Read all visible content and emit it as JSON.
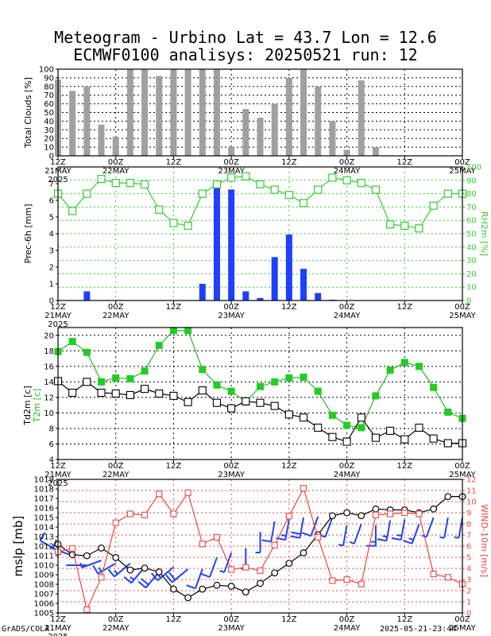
{
  "title_line1": "Meteogram - Urbino Lat = 43.7 Lon = 12.6",
  "title_line2": "ECMWF0100 analisys: 20250521 run: 12",
  "credit_left": "GrADS/COLA",
  "credit_right": "2025-05-21-23:44",
  "time_axis": {
    "ticks": [
      {
        "label": "12Z",
        "sublabel": "21MAY",
        "year": "2025"
      },
      {
        "label": "00Z",
        "sublabel": "22MAY",
        "year": ""
      },
      {
        "label": "12Z",
        "sublabel": "",
        "year": ""
      },
      {
        "label": "00Z",
        "sublabel": "23MAY",
        "year": ""
      },
      {
        "label": "12Z",
        "sublabel": "",
        "year": ""
      },
      {
        "label": "00Z",
        "sublabel": "24MAY",
        "year": ""
      },
      {
        "label": "12Z",
        "sublabel": "",
        "year": ""
      },
      {
        "label": "00Z",
        "sublabel": "25MAY",
        "year": ""
      }
    ]
  },
  "colors": {
    "cloud_bar": "#a0a0a0",
    "precip_bar": "#1f3fff",
    "rh_line": "#33cc33",
    "t2m_line": "#22bb22",
    "t2m_marker": "#22cc22",
    "td2m_line": "#000000",
    "mslp_line": "#000000",
    "wind_line": "#ee4444",
    "barb": "#2244ee"
  },
  "chart_data": [
    {
      "type": "bar",
      "ylabel": "Total Clouds [%]",
      "ylim": [
        0,
        100
      ],
      "yticks": [
        0,
        10,
        20,
        30,
        40,
        50,
        60,
        70,
        80,
        90,
        100
      ],
      "x": [
        0,
        3,
        6,
        9,
        12,
        15,
        18,
        21,
        24,
        27,
        30,
        33,
        36,
        39,
        42,
        45,
        48,
        51,
        54,
        57,
        60,
        63,
        66,
        69,
        72,
        75,
        78,
        81,
        84
      ],
      "values": [
        88,
        75,
        80,
        36,
        22,
        100,
        100,
        92,
        100,
        100,
        100,
        100,
        10,
        54,
        44,
        60,
        90,
        100,
        80,
        40,
        7,
        87,
        10,
        0,
        0,
        0,
        0,
        0,
        0
      ]
    },
    {
      "type": "bar+line",
      "ylabel": "Prec-6h [mm]",
      "ylabel_right": "RH2m [%]",
      "ylim": [
        0,
        8
      ],
      "ylim_right": [
        0,
        100
      ],
      "yticks": [
        0,
        1,
        2,
        3,
        4,
        5,
        6,
        7
      ],
      "yticks_right": [
        0,
        10,
        20,
        30,
        40,
        50,
        60,
        70,
        80,
        90,
        100
      ],
      "precip_x": [
        6,
        30,
        33,
        36,
        39,
        42,
        45,
        48,
        51,
        54,
        57,
        60
      ],
      "precip_values": [
        0.55,
        1.0,
        6.95,
        6.65,
        0.55,
        0.15,
        2.6,
        3.95,
        1.9,
        0.45,
        0.05,
        0.0
      ],
      "rh_x": [
        0,
        3,
        6,
        9,
        12,
        15,
        18,
        21,
        24,
        27,
        30,
        33,
        36,
        39,
        42,
        45,
        48,
        51,
        54,
        57,
        60,
        63,
        66,
        69,
        72,
        75,
        78,
        81,
        84
      ],
      "rh_values": [
        80,
        67,
        80,
        91,
        88,
        88,
        87,
        68,
        58,
        56,
        80,
        87,
        92,
        93,
        87,
        83,
        79,
        73,
        83,
        92,
        90,
        88,
        83,
        57,
        56,
        54,
        71,
        80,
        80
      ]
    },
    {
      "type": "line",
      "ylabel": "Td2m [c]",
      "ylabel2": "T2m [c]",
      "ylim": [
        4,
        21
      ],
      "yticks": [
        4,
        6,
        8,
        10,
        12,
        14,
        16,
        18,
        20
      ],
      "series": [
        {
          "name": "T2m [c]",
          "x": [
            0,
            3,
            6,
            9,
            12,
            15,
            18,
            21,
            24,
            27,
            30,
            33,
            36,
            39,
            42,
            45,
            48,
            51,
            54,
            57,
            60,
            63,
            66,
            69,
            72,
            75,
            78,
            81,
            84
          ],
          "values": [
            17.9,
            19.2,
            17.8,
            14.0,
            14.5,
            14.4,
            15.4,
            18.7,
            20.6,
            20.6,
            15.6,
            13.6,
            12.8,
            11.4,
            13.4,
            14.0,
            14.5,
            14.6,
            12.8,
            9.7,
            8.4,
            8.1,
            12.2,
            15.5,
            16.5,
            16.0,
            13.3,
            10.1,
            9.3
          ]
        },
        {
          "name": "Td2m [c]",
          "x": [
            0,
            3,
            6,
            9,
            12,
            15,
            18,
            21,
            24,
            27,
            30,
            33,
            36,
            39,
            42,
            45,
            48,
            51,
            54,
            57,
            60,
            63,
            66,
            69,
            72,
            75,
            78,
            81,
            84
          ],
          "values": [
            14.1,
            12.6,
            14.0,
            12.6,
            12.5,
            12.3,
            13.1,
            12.5,
            12.2,
            11.4,
            12.9,
            11.3,
            10.6,
            11.5,
            11.3,
            10.9,
            9.8,
            9.4,
            8.1,
            6.9,
            6.3,
            9.4,
            6.8,
            7.7,
            6.6,
            8.1,
            6.7,
            6.1,
            6.1
          ]
        }
      ]
    },
    {
      "type": "line",
      "ylabel": "mslp [mb]",
      "ylabel_right": "WIND-10m [m/s]",
      "ylim": [
        1005,
        1019
      ],
      "ylim_right": [
        0,
        12
      ],
      "yticks": [
        1005,
        1006,
        1007,
        1008,
        1009,
        1010,
        1011,
        1012,
        1013,
        1014,
        1015,
        1016,
        1017,
        1018,
        1019
      ],
      "yticks_right": [
        0,
        1,
        2,
        3,
        4,
        5,
        6,
        7,
        8,
        9,
        10,
        11,
        12
      ],
      "series": [
        {
          "name": "mslp [mb]",
          "x": [
            0,
            3,
            6,
            9,
            12,
            15,
            18,
            21,
            24,
            27,
            30,
            33,
            36,
            39,
            42,
            45,
            48,
            51,
            54,
            57,
            60,
            63,
            66,
            69,
            72,
            75,
            78,
            81,
            84
          ],
          "values": [
            1012.2,
            1011.1,
            1011.0,
            1011.8,
            1010.8,
            1009.5,
            1009.7,
            1009.3,
            1007.5,
            1006.6,
            1007.5,
            1007.9,
            1007.8,
            1007.2,
            1008.1,
            1009.2,
            1010.2,
            1011.3,
            1013.2,
            1015.2,
            1015.5,
            1015.2,
            1015.9,
            1015.8,
            1015.8,
            1015.5,
            1015.9,
            1017.2,
            1017.2
          ]
        },
        {
          "name": "WIND-10m [m/s]",
          "x": [
            0,
            3,
            6,
            9,
            12,
            15,
            18,
            21,
            24,
            27,
            30,
            33,
            36,
            39,
            42,
            45,
            48,
            51,
            54,
            57,
            60,
            63,
            66,
            69,
            72,
            75,
            78,
            81,
            84
          ],
          "values": [
            5.5,
            5.8,
            0.3,
            3.2,
            8.1,
            8.9,
            8.8,
            10.7,
            8.9,
            10.8,
            6.2,
            6.8,
            3.9,
            4.1,
            3.8,
            6.1,
            8.7,
            11.2,
            6.8,
            2.9,
            3.0,
            2.6,
            8.8,
            8.9,
            9.0,
            8.9,
            3.5,
            3.2,
            2.6
          ]
        }
      ],
      "wind_barbs": {
        "x": [
          0,
          3,
          6,
          9,
          12,
          15,
          18,
          21,
          24,
          27,
          30,
          33,
          36,
          39,
          42,
          45,
          48,
          51,
          54,
          57,
          60,
          63,
          66,
          69,
          72,
          75,
          78,
          81,
          84
        ],
        "level_mb": [
          1011.5,
          1011.0,
          1010.0,
          1010.5,
          1010.2,
          1010.2,
          1009.8,
          1009.3,
          1009.8,
          1009.6,
          1009.6,
          1010.8,
          1011.3,
          1011.8,
          1013.5,
          1014.6,
          1014.8,
          1015.0,
          1015.1,
          1015.0,
          1014.2,
          1014.3,
          1014.2,
          1014.7,
          1014.8,
          1014.3,
          1015.0,
          1015.0,
          1015.0
        ],
        "speed": [
          5.5,
          5.8,
          0.3,
          3.2,
          8.1,
          8.9,
          8.8,
          10.7,
          8.9,
          10.8,
          6.2,
          6.8,
          3.9,
          4.1,
          3.8,
          6.1,
          8.7,
          11.2,
          6.8,
          2.9,
          3.0,
          2.6,
          8.8,
          8.9,
          9.0,
          8.9,
          3.5,
          3.2,
          2.6
        ],
        "dir_deg": [
          300,
          290,
          270,
          250,
          240,
          230,
          220,
          220,
          230,
          230,
          200,
          200,
          200,
          180,
          180,
          190,
          190,
          190,
          200,
          200,
          190,
          200,
          180,
          190,
          190,
          200,
          200,
          190,
          190
        ]
      }
    }
  ]
}
